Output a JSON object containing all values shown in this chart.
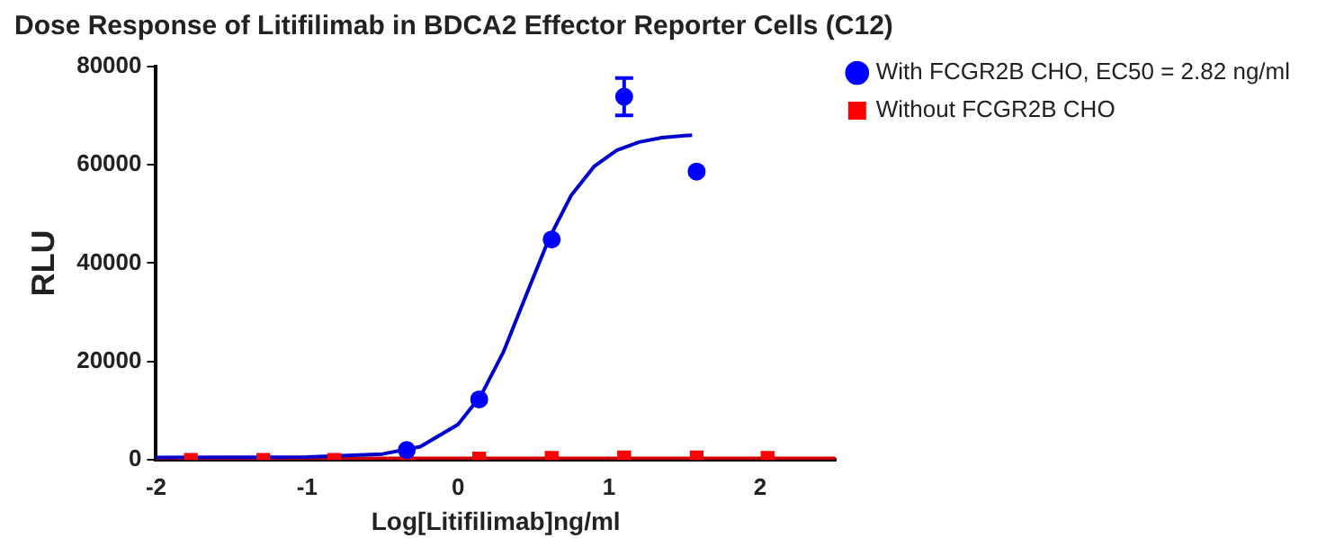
{
  "chart_data": {
    "type": "scatter",
    "title": "Dose Response of Litifilimab in BDCA2 Effector Reporter Cells (C12)",
    "xlabel": "Log[Litifilimab]ng/ml",
    "ylabel": "RLU",
    "xlim": [
      -2,
      2.5
    ],
    "xticks": [
      -2,
      -1,
      0,
      1,
      2
    ],
    "ylim": [
      0,
      80000
    ],
    "yticks": [
      0,
      20000,
      40000,
      60000,
      80000
    ],
    "grid": false,
    "legend": "right",
    "series": [
      {
        "name": "With FCGR2B CHO, EC50 = 2.82 ng/ml",
        "color": "#0000ff",
        "marker": "circle",
        "x": [
          -0.34,
          0.14,
          0.62,
          1.1,
          1.58
        ],
        "values": [
          2000,
          12300,
          44800,
          73800,
          58600
        ],
        "errors": [
          null,
          null,
          null,
          3800,
          null
        ]
      },
      {
        "name": "Without FCGR2B CHO",
        "color": "#ff0000",
        "marker": "square",
        "x": [
          -1.77,
          -1.29,
          -0.82,
          -0.34,
          0.14,
          0.62,
          1.1,
          1.58,
          2.05
        ],
        "values": [
          0,
          0,
          0,
          0,
          300,
          400,
          500,
          500,
          400
        ]
      },
      {
        "type": "line",
        "color": "#0000cc",
        "marker": "none",
        "x": [
          -2,
          -1,
          -0.5,
          -0.25,
          0,
          0.15,
          0.3,
          0.45,
          0.6,
          0.75,
          0.9,
          1.05,
          1.2,
          1.35,
          1.55
        ],
        "values": [
          500,
          600,
          1200,
          2700,
          7200,
          13000,
          21900,
          33400,
          44800,
          53800,
          59600,
          62900,
          64600,
          65500,
          66000
        ]
      },
      {
        "type": "line",
        "color": "#cc0000",
        "marker": "none",
        "x": [
          -2,
          2.5
        ],
        "values": [
          300,
          300
        ]
      }
    ]
  }
}
